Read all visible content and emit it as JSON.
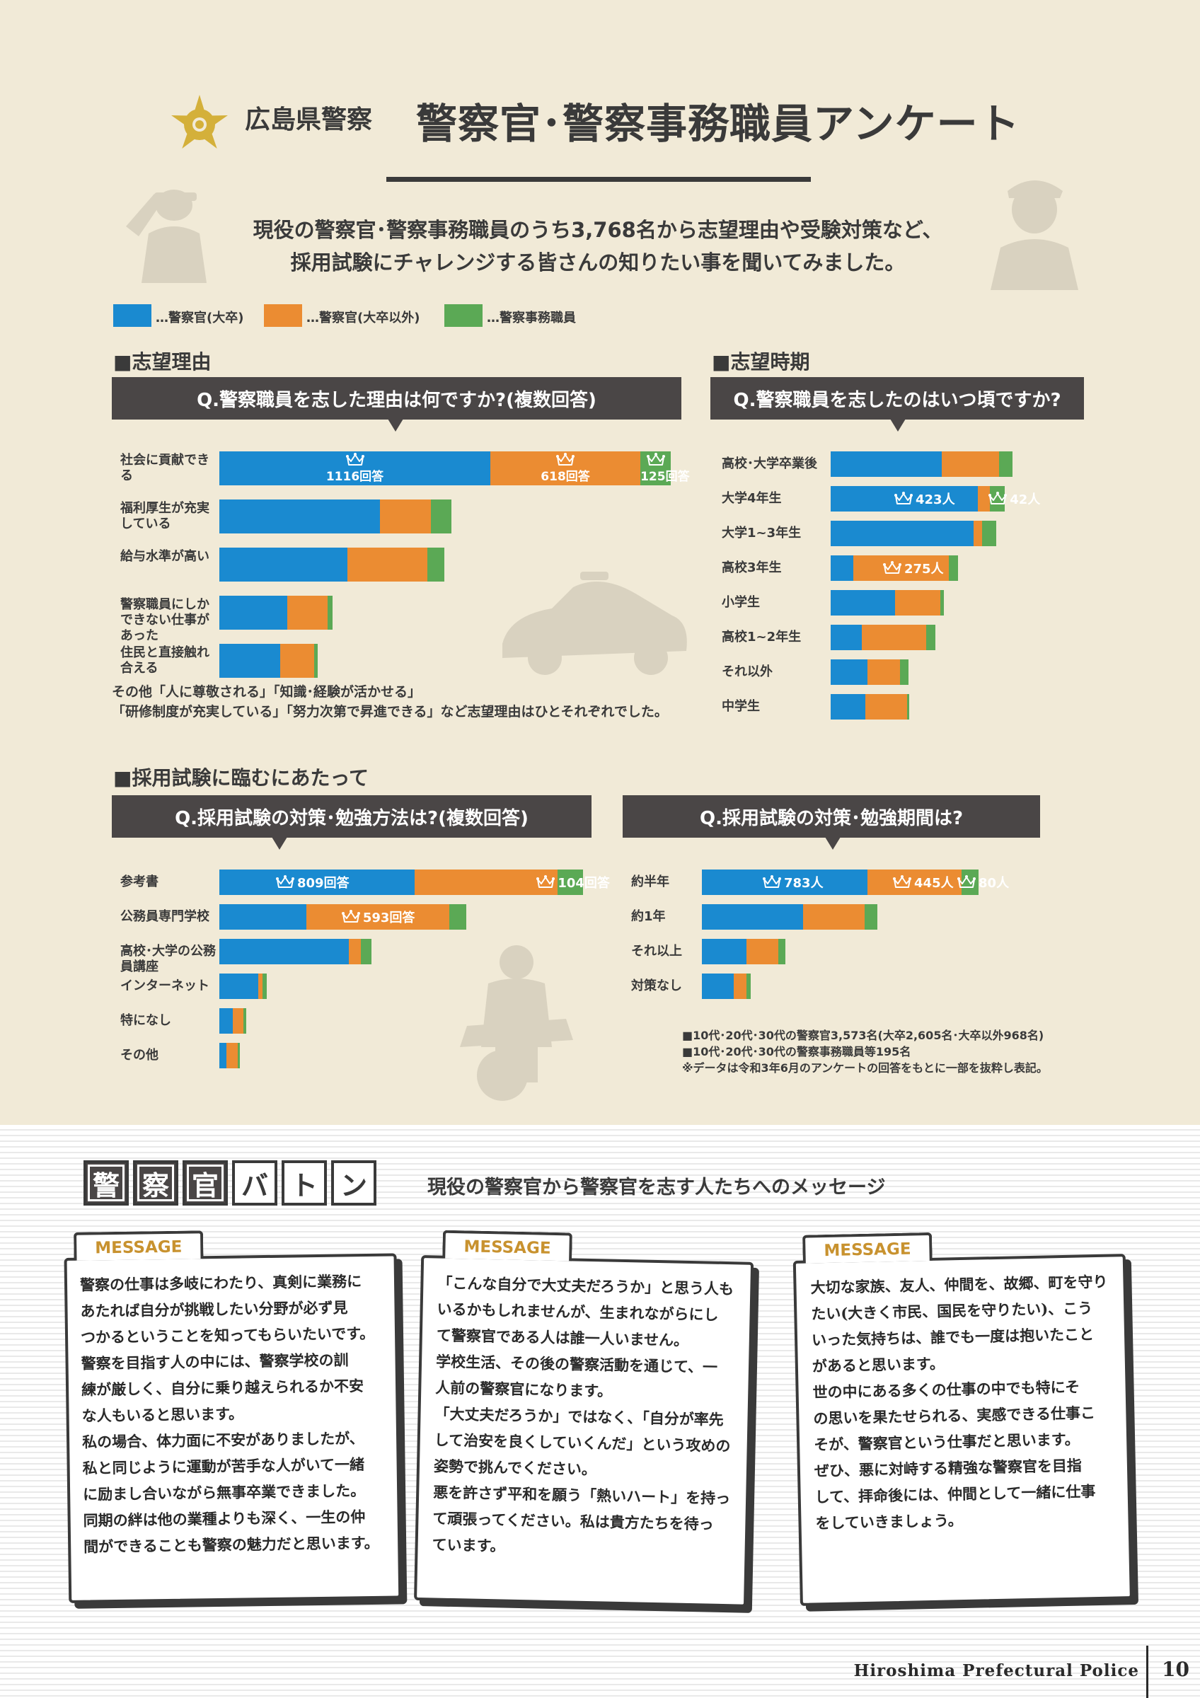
{
  "header": {
    "org": "広島県警察",
    "title": "警察官･警察事務職員アンケート",
    "intro_line1": "現役の警察官･警察事務職員のうち3,768名から志望理由や受験対策など、",
    "intro_line2": "採用試験にチャレンジする皆さんの知りたい事を聞いてみました。"
  },
  "legend": [
    {
      "label": "…警察官(大卒)",
      "color": "#1a8ad0"
    },
    {
      "label": "…警察官(大卒以外)",
      "color": "#eb8c32"
    },
    {
      "label": "…警察事務職員",
      "color": "#5ba955"
    }
  ],
  "sections": {
    "reason": "■志望理由",
    "timing": "■志望時期",
    "exam": "■採用試験に臨むにあたって"
  },
  "questions": {
    "q1": "Q.警察職員を志した理由は何ですか?(複数回答)",
    "q2": "Q.警察職員を志したのはいつ頃ですか?",
    "q3": "Q.採用試験の対策･勉強方法は?(複数回答)",
    "q4": "Q.採用試験の対策･勉強期間は?"
  },
  "chart_data": [
    {
      "type": "bar",
      "title": "Q.警察職員を志した理由は何ですか?(複数回答)",
      "categories": [
        "社会に貢献できる",
        "福利厚生が充実している",
        "給与水準が高い",
        "警察職員にしかできない仕事があった",
        "住民と直接触れ合える"
      ],
      "series": [
        {
          "name": "警察官(大卒)",
          "values": [
            1116,
            660,
            528,
            280,
            250
          ]
        },
        {
          "name": "警察官(大卒以外)",
          "values": [
            618,
            210,
            330,
            165,
            140
          ]
        },
        {
          "name": "警察事務職員",
          "values": [
            125,
            85,
            70,
            20,
            15
          ]
        }
      ],
      "labels": [
        "1116回答",
        "618回答",
        "125回答"
      ],
      "note_line1": "その他「人に尊敬される」「知識･経験が活かせる」",
      "note_line2": "「研修制度が充実している」「努力次第で昇進できる」など志望理由はひとそれぞれでした。"
    },
    {
      "type": "bar",
      "title": "Q.警察職員を志したのはいつ頃ですか?",
      "categories": [
        "高校･大学卒業後",
        "大学4年生",
        "大学1~3年生",
        "高校3年生",
        "小学生",
        "高校1~2年生",
        "それ以外",
        "中学生"
      ],
      "series": [
        {
          "name": "警察官(大卒)",
          "values": [
            320,
            423,
            410,
            65,
            185,
            90,
            105,
            100
          ]
        },
        {
          "name": "警察官(大卒以外)",
          "values": [
            165,
            35,
            25,
            275,
            130,
            185,
            95,
            120
          ]
        },
        {
          "name": "警察事務職員",
          "values": [
            38,
            42,
            40,
            26,
            10,
            26,
            24,
            5
          ]
        }
      ],
      "labels": [
        "423人",
        "42人",
        "275人"
      ]
    },
    {
      "type": "bar",
      "title": "Q.採用試験の対策･勉強方法は?(複数回答)",
      "categories": [
        "参考書",
        "公務員専門学校",
        "高校･大学の公務員講座",
        "インターネット",
        "特になし",
        "その他"
      ],
      "series": [
        {
          "name": "警察官(大卒)",
          "values": [
            809,
            360,
            535,
            160,
            55,
            30
          ]
        },
        {
          "name": "警察官(大卒以外)",
          "values": [
            593,
            593,
            50,
            20,
            45,
            45
          ]
        },
        {
          "name": "警察事務職員",
          "values": [
            104,
            70,
            45,
            15,
            12,
            10
          ]
        }
      ],
      "labels": [
        "809回答",
        "593回答",
        "104回答"
      ]
    },
    {
      "type": "bar",
      "title": "Q.採用試験の対策･勉強期間は?",
      "categories": [
        "約半年",
        "約1年",
        "それ以上",
        "対策なし"
      ],
      "series": [
        {
          "name": "警察官(大卒)",
          "values": [
            783,
            480,
            210,
            150
          ]
        },
        {
          "name": "警察官(大卒以外)",
          "values": [
            445,
            290,
            150,
            60
          ]
        },
        {
          "name": "警察事務職員",
          "values": [
            80,
            60,
            35,
            20
          ]
        }
      ],
      "labels": [
        "783人",
        "445人",
        "80人"
      ]
    }
  ],
  "footnotes": [
    "■10代･20代･30代の警察官3,573名(大卒2,605名･大卒以外968名)",
    "■10代･20代･30代の警察事務職員等195名",
    "※データは令和3年6月のアンケートの回答をもとに一部を抜粋し表記。"
  ],
  "baton": {
    "chars": [
      "警",
      "察",
      "官",
      "バ",
      "ト",
      "ン"
    ],
    "subtitle": "現役の警察官から警察官を志す人たちへのメッセージ",
    "tag": "MESSAGE",
    "messages": [
      [
        "警察の仕事は多岐にわたり、真剣に業務に",
        "あたれば自分が挑戦したい分野が必ず見",
        "つかるということを知ってもらいたいです。",
        "警察を目指す人の中には、警察学校の訓",
        "練が厳しく、自分に乗り越えられるか不安",
        "な人もいると思います。",
        "私の場合、体力面に不安がありましたが、",
        "私と同じように運動が苦手な人がいて一緒",
        "に励まし合いながら無事卒業できました。",
        "同期の絆は他の業種よりも深く、一生の仲",
        "間ができることも警察の魅力だと思います。"
      ],
      [
        "「こんな自分で大丈夫だろうか」と思う人も",
        "いるかもしれませんが、生まれながらにし",
        "て警察官である人は誰一人いません。",
        "学校生活、その後の警察活動を通じて、一",
        "人前の警察官になります。",
        "「大丈夫だろうか」ではなく、「自分が率先",
        "して治安を良くしていくんだ」という攻めの",
        "姿勢で挑んでください。",
        "悪を許さず平和を願う「熱いハート」を持っ",
        "て頑張ってください。私は貴方たちを待っ",
        "ています。"
      ],
      [
        "大切な家族、友人、仲間を、故郷、町を守り",
        "たい(大きく市民、国民を守りたい)、こう",
        "いった気持ちは、誰でも一度は抱いたこと",
        "があると思います。",
        "世の中にある多くの仕事の中でも特にそ",
        "の思いを果たせられる、実感できる仕事こ",
        "そが、警察官という仕事だと思います。",
        "ぜひ、悪に対峙する精強な警察官を目指",
        "して、拝命後には、仲間として一緒に仕事",
        "をしていきましょう。"
      ]
    ]
  },
  "footer": {
    "name": "Hiroshima Prefectural Police",
    "page": "10"
  }
}
